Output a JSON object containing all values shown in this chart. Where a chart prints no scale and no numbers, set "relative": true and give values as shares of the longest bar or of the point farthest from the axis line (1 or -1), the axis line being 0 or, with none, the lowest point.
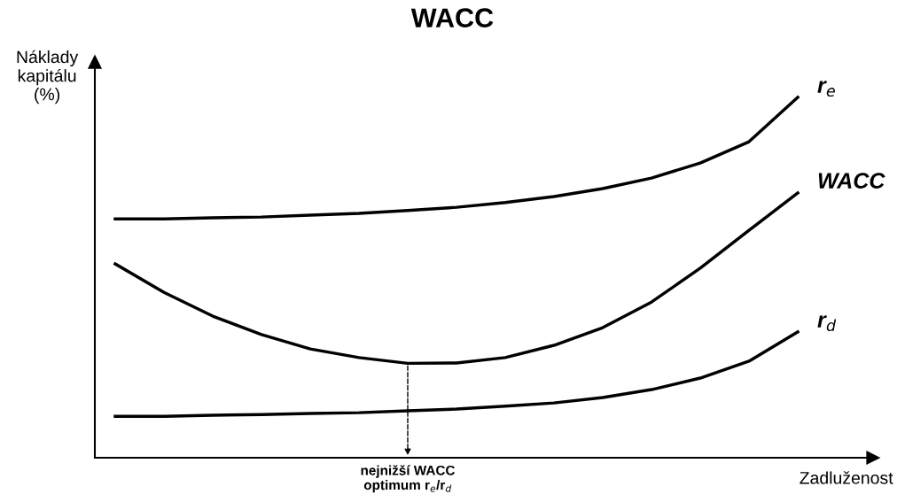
{
  "chart_data": {
    "type": "line",
    "title": "WACC",
    "xlabel": "Zadluženost",
    "ylabel": "Náklady\nkapitálu\n(%)",
    "relative": true,
    "legend": false,
    "marker": "none",
    "line_style": "solid",
    "categories": [
      null,
      null,
      null,
      null,
      null,
      null,
      null,
      null,
      null,
      null,
      null,
      null,
      null,
      null,
      null
    ],
    "series": [
      {
        "name": "r$_{e}$",
        "color": "#000000",
        "values": [
          0.663,
          0.663,
          0.666,
          0.668,
          0.673,
          0.678,
          0.686,
          0.695,
          0.708,
          0.725,
          0.747,
          0.776,
          0.818,
          0.877,
          1.0
        ]
      },
      {
        "name": "WACC",
        "color": "#000000",
        "values": [
          0.538,
          0.459,
          0.393,
          0.342,
          0.302,
          0.278,
          0.262,
          0.263,
          0.278,
          0.312,
          0.361,
          0.432,
          0.526,
          0.631,
          0.735
        ]
      },
      {
        "name": "r$_{d}$",
        "color": "#000000",
        "values": [
          0.115,
          0.115,
          0.118,
          0.12,
          0.123,
          0.125,
          0.13,
          0.135,
          0.143,
          0.152,
          0.167,
          0.189,
          0.221,
          0.268,
          0.349
        ]
      }
    ],
    "annotations": [
      "nejnižší WACC\noptimum r$_{e}$/r$_{d}$"
    ]
  }
}
